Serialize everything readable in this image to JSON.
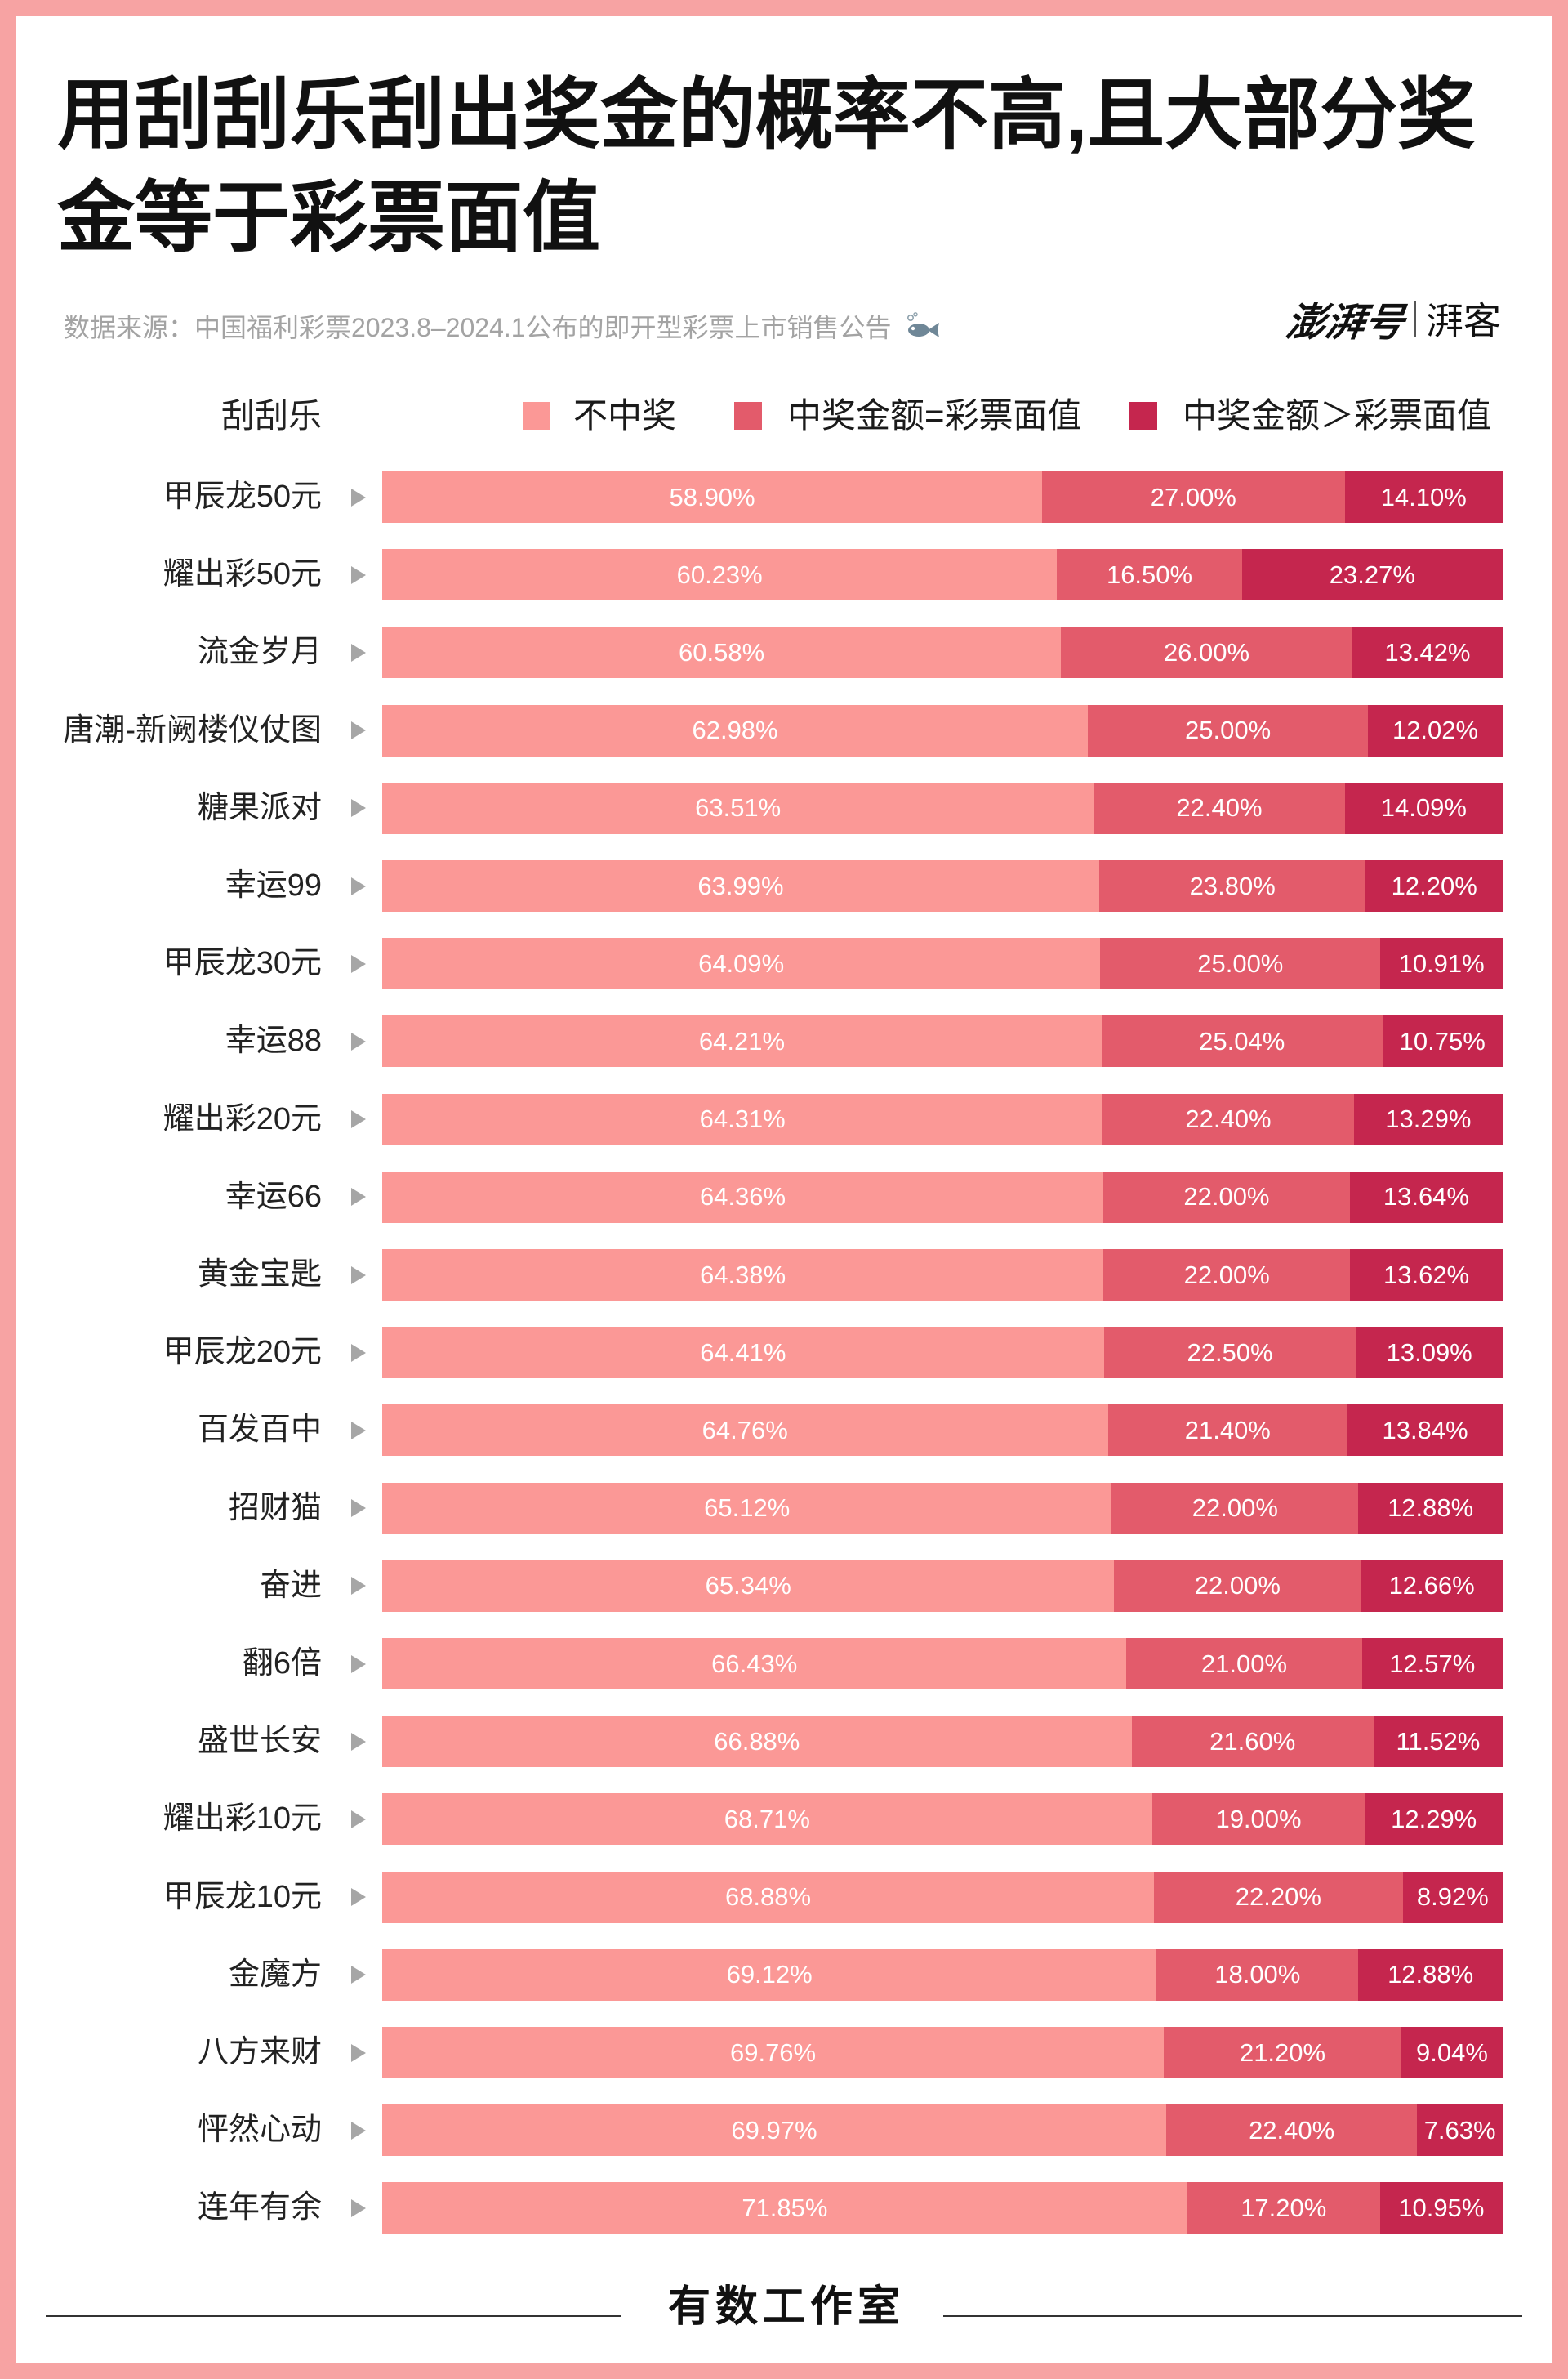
{
  "theme": {
    "frame_color": "#f7a3a3",
    "marker_color": "#a6a6a6"
  },
  "brand": {
    "logo_main": "澎湃号",
    "logo_sub": "湃客"
  },
  "chart_data": {
    "type": "bar",
    "orientation": "horizontal",
    "stacked": true,
    "title": [
      "用刮刮乐刮出奖金的概率不高,且大部分奖",
      "金等于彩票面值"
    ],
    "source": "数据来源：中国福利彩票2023.8–2024.1公布的即开型彩票上市销售公告",
    "source_icon": "fish-icon",
    "ylabel": "刮刮乐",
    "unit": "%",
    "xlim": [
      0,
      100
    ],
    "legend_position": "top",
    "row_marker_icon": "triangle-right-icon",
    "categories": [
      "甲辰龙50元",
      "耀出彩50元",
      "流金岁月",
      "唐潮-新阙楼仪仗图",
      "糖果派对",
      "幸运99",
      "甲辰龙30元",
      "幸运88",
      "耀出彩20元",
      "幸运66",
      "黄金宝匙",
      "甲辰龙20元",
      "百发百中",
      "招财猫",
      "奋进",
      "翻6倍",
      "盛世长安",
      "耀出彩10元",
      "甲辰龙10元",
      "金魔方",
      "八方来财",
      "怦然心动",
      "连年有余"
    ],
    "series": [
      {
        "name": "不中奖",
        "color": "#fb9896",
        "values": [
          58.9,
          60.23,
          60.58,
          62.98,
          63.51,
          63.99,
          64.09,
          64.21,
          64.31,
          64.36,
          64.38,
          64.41,
          64.76,
          65.12,
          65.34,
          66.43,
          66.88,
          68.71,
          68.88,
          69.12,
          69.76,
          69.97,
          71.85
        ]
      },
      {
        "name": "中奖金额=彩票面值",
        "color": "#e35b6b",
        "values": [
          27.0,
          16.5,
          26.0,
          25.0,
          22.4,
          23.8,
          25.0,
          25.04,
          22.4,
          22.0,
          22.0,
          22.5,
          21.4,
          22.0,
          22.0,
          21.0,
          21.6,
          19.0,
          22.2,
          18.0,
          21.2,
          22.4,
          17.2
        ]
      },
      {
        "name": "中奖金额＞彩票面值",
        "color": "#c5264e",
        "values": [
          14.1,
          23.27,
          13.42,
          12.02,
          14.09,
          12.2,
          10.91,
          10.75,
          13.29,
          13.64,
          13.62,
          13.09,
          13.84,
          12.88,
          12.66,
          12.57,
          11.52,
          12.29,
          8.92,
          12.88,
          9.04,
          7.63,
          10.95
        ]
      }
    ]
  },
  "footer": {
    "credit": "有数工作室"
  }
}
